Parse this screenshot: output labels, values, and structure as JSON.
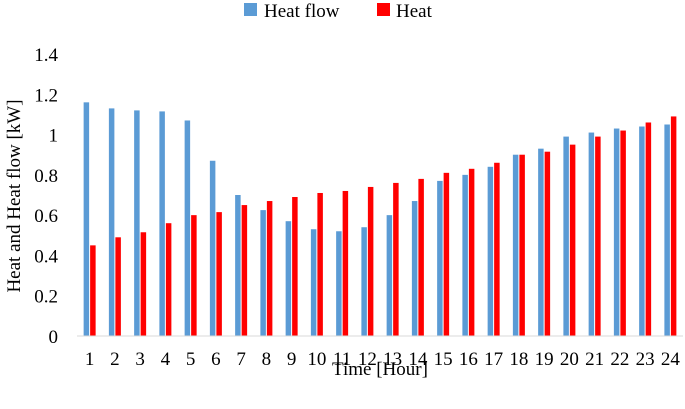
{
  "chart_data": {
    "type": "bar",
    "title": "",
    "xlabel": "Time [Hour]",
    "ylabel": "Heat and Heat flow [kW]",
    "ylim": [
      0,
      1.4
    ],
    "yticks": [
      "0",
      "0.2",
      "0.4",
      "0.6",
      "0.8",
      "1",
      "1.2",
      "1.4"
    ],
    "ytick_values": [
      0,
      0.2,
      0.4,
      0.6,
      0.8,
      1.0,
      1.2,
      1.4
    ],
    "grid": false,
    "legend_position": "top-center",
    "categories": [
      "1",
      "2",
      "3",
      "4",
      "5",
      "6",
      "7",
      "8",
      "9",
      "10",
      "11",
      "12",
      "13",
      "14",
      "15",
      "16",
      "17",
      "18",
      "19",
      "20",
      "21",
      "22",
      "23",
      "24"
    ],
    "series": [
      {
        "name": "Heat flow",
        "color": "#5b9bd5",
        "values": [
          1.16,
          1.13,
          1.12,
          1.115,
          1.07,
          0.87,
          0.7,
          0.625,
          0.57,
          0.53,
          0.52,
          0.54,
          0.6,
          0.67,
          0.77,
          0.8,
          0.84,
          0.9,
          0.93,
          0.99,
          1.01,
          1.03,
          1.04,
          1.05
        ]
      },
      {
        "name": "Heat",
        "color": "#ff0000",
        "values": [
          0.45,
          0.49,
          0.515,
          0.56,
          0.6,
          0.615,
          0.65,
          0.67,
          0.69,
          0.71,
          0.72,
          0.74,
          0.76,
          0.78,
          0.81,
          0.83,
          0.86,
          0.9,
          0.915,
          0.95,
          0.99,
          1.02,
          1.06,
          1.09
        ]
      }
    ]
  }
}
